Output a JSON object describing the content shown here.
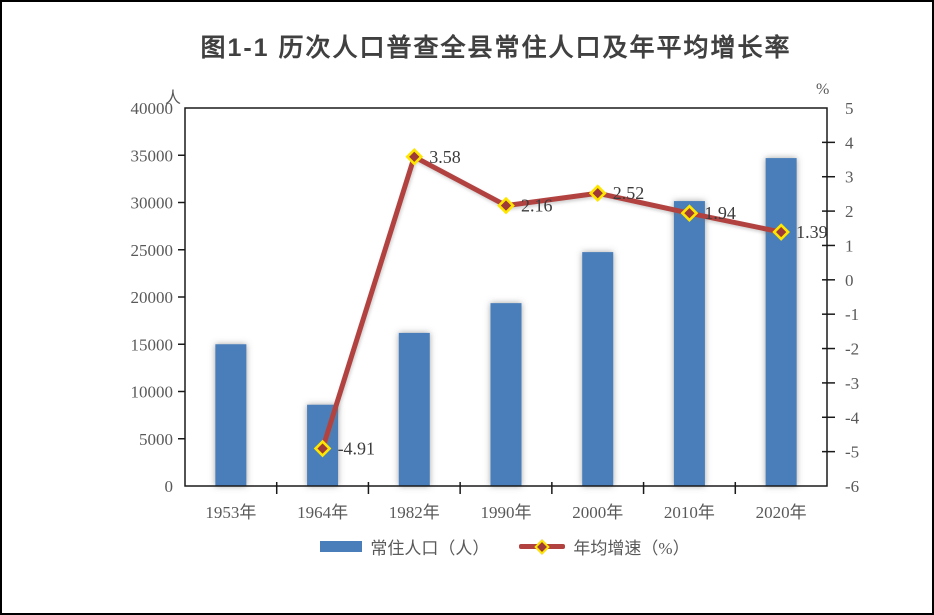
{
  "chart_data": {
    "type": "bar+line",
    "title": "图1-1 历次人口普查全县常住人口及年平均增长率",
    "categories": [
      "1953年",
      "1964年",
      "1982年",
      "1990年",
      "2000年",
      "2010年",
      "2020年"
    ],
    "series": [
      {
        "name": "常住人口（人）",
        "kind": "bar",
        "axis": "left",
        "values": [
          15000,
          8600,
          16200,
          19350,
          24750,
          30150,
          34700
        ]
      },
      {
        "name": "年均增速（%）",
        "kind": "line",
        "axis": "right",
        "values": [
          null,
          -4.91,
          3.58,
          2.16,
          2.52,
          1.94,
          1.39
        ],
        "point_labels": [
          "",
          "-4.91",
          "3.58",
          "2.16",
          "2.52",
          "1.94",
          "1.39"
        ]
      }
    ],
    "left_axis": {
      "unit": "人",
      "min": 0,
      "max": 40000,
      "tick_step": 5000,
      "tick_labels": [
        "0",
        "5000",
        "10000",
        "15000",
        "20000",
        "25000",
        "30000",
        "35000",
        "40000"
      ]
    },
    "right_axis": {
      "unit": "%",
      "min": -6,
      "max": 5,
      "tick_step": 1,
      "tick_labels": [
        "-6",
        "-5",
        "-4",
        "-3",
        "-2",
        "-1",
        "0",
        "1",
        "2",
        "3",
        "4",
        "5"
      ]
    },
    "legend": {
      "position": "bottom",
      "entries": [
        {
          "label": "常住人口（人）",
          "swatch": "bar"
        },
        {
          "label": "年均增速（%）",
          "swatch": "line-diamond"
        }
      ]
    },
    "grid": false,
    "colors": {
      "bar": "#4a7eba",
      "line": "#b2423f",
      "marker_fill": "#9e3b39",
      "marker_stroke": "#ffe600",
      "axis_line": "#1a1a1a",
      "tick_text": "#595959",
      "point_label_text": "#3c3c3c",
      "title_text": "#404040",
      "frame_border": "#000000",
      "background": "#ffffff"
    }
  }
}
